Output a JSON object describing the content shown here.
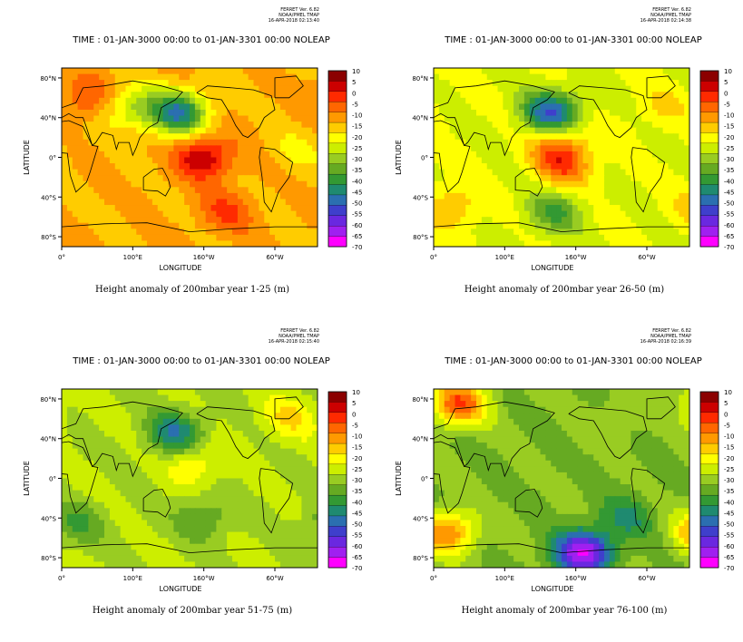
{
  "shared": {
    "time_range": "TIME : 01-JAN-3000 00:00 to 01-JAN-3301 00:00 NOLEAP",
    "xlabel": "LONGITUDE",
    "ylabel": "LATITUDE",
    "xticks": [
      "0°",
      "100°E",
      "160°W",
      "60°W"
    ],
    "yticks": [
      "80°N",
      "40°N",
      "0°",
      "40°S",
      "80°S"
    ],
    "stamp_lines": [
      "FERRET Ver. 6.82",
      "NOAA/PMEL TMAP",
      "16-APR-2018"
    ],
    "colorbar_levels": [
      10,
      5,
      0,
      -5,
      -10,
      -15,
      -20,
      -25,
      -30,
      -35,
      -40,
      -45,
      -50,
      -55,
      -60,
      -65,
      -70
    ],
    "colorbar_colors": [
      "#8b0000",
      "#cc0000",
      "#ff2a00",
      "#ff6600",
      "#ff9900",
      "#ffcc00",
      "#ffff00",
      "#ccee00",
      "#99cc22",
      "#66aa22",
      "#339933",
      "#1f8a70",
      "#2b6fb0",
      "#3f3fcc",
      "#6a28e0",
      "#a020f0",
      "#ff00ff"
    ]
  },
  "chart_data": [
    {
      "type": "heatmap",
      "title": "Height anomaly of 200mbar year 1-25 (m)",
      "stamp_time": "16-APR-2018 02:13:40",
      "xlabel": "LONGITUDE",
      "ylabel": "LATITUDE",
      "xlim": [
        0,
        360
      ],
      "ylim": [
        -90,
        90
      ],
      "base_level": -15,
      "features": [
        {
          "lon": 200,
          "lat": 0,
          "level": 5,
          "label": "tropical Pacific high"
        },
        {
          "lon": 165,
          "lat": 45,
          "level": -50,
          "label": "North Pacific low"
        },
        {
          "lon": 35,
          "lat": 60,
          "level": -5
        },
        {
          "lon": 100,
          "lat": 50,
          "level": -30
        },
        {
          "lon": 230,
          "lat": -55,
          "level": -5
        },
        {
          "lon": 330,
          "lat": 5,
          "level": -20
        }
      ]
    },
    {
      "type": "heatmap",
      "title": "Height anomaly of 200mbar year 26-50 (m)",
      "stamp_time": "16-APR-2018 02:14:38",
      "xlabel": "LONGITUDE",
      "ylabel": "LATITUDE",
      "xlim": [
        0,
        360
      ],
      "ylim": [
        -90,
        90
      ],
      "base_level": -25,
      "features": [
        {
          "lon": 165,
          "lat": 45,
          "level": -55,
          "label": "North Pacific low"
        },
        {
          "lon": 175,
          "lat": 10,
          "level": -10
        },
        {
          "lon": 185,
          "lat": -10,
          "level": -10
        },
        {
          "lon": 170,
          "lat": -55,
          "level": -40
        },
        {
          "lon": 25,
          "lat": -50,
          "level": -15
        },
        {
          "lon": 320,
          "lat": 50,
          "level": -20
        }
      ]
    },
    {
      "type": "heatmap",
      "title": "Height anomaly of 200mbar year 51-75 (m)",
      "stamp_time": "16-APR-2018 02:15:40",
      "xlabel": "LONGITUDE",
      "ylabel": "LATITUDE",
      "xlim": [
        0,
        360
      ],
      "ylim": [
        -90,
        90
      ],
      "base_level": -30,
      "features": [
        {
          "lon": 160,
          "lat": 45,
          "level": -50,
          "label": "North Pacific low"
        },
        {
          "lon": 185,
          "lat": 15,
          "level": -20
        },
        {
          "lon": 200,
          "lat": -40,
          "level": -40
        },
        {
          "lon": 20,
          "lat": -45,
          "level": -40
        },
        {
          "lon": 320,
          "lat": 60,
          "level": -20
        }
      ]
    },
    {
      "type": "heatmap",
      "title": "Height anomaly of 200mbar year 76-100 (m)",
      "stamp_time": "16-APR-2018 02:16:39",
      "xlabel": "LONGITUDE",
      "ylabel": "LATITUDE",
      "xlim": [
        0,
        360
      ],
      "ylim": [
        -90,
        90
      ],
      "base_level": -35,
      "features": [
        {
          "lon": 210,
          "lat": -75,
          "level": -70,
          "label": "Southern Ocean minimum"
        },
        {
          "lon": 35,
          "lat": 75,
          "level": -5
        },
        {
          "lon": 20,
          "lat": -55,
          "level": -10
        },
        {
          "lon": 260,
          "lat": 60,
          "level": -30
        },
        {
          "lon": 270,
          "lat": -40,
          "level": -45
        }
      ]
    }
  ]
}
